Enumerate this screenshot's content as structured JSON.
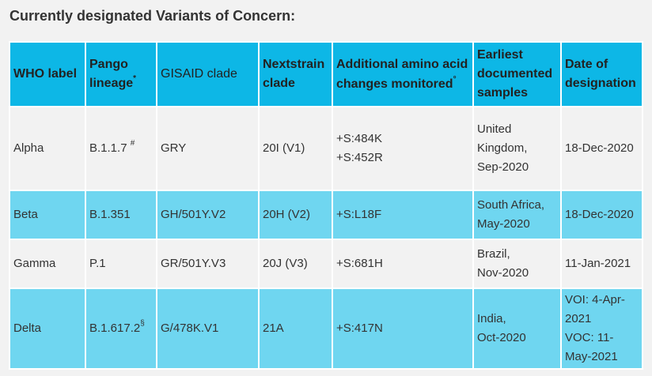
{
  "heading": "Currently designated Variants of Concern:",
  "columns": {
    "who_label": "WHO label",
    "pango_lineage": "Pango lineage",
    "pango_mark": "*",
    "gisaid_clade": "GISAID clade",
    "nextstrain_clade": "Nextstrain clade",
    "amino_acid_line1": "Additional amino acid",
    "amino_acid_line2": "changes monitored",
    "amino_acid_mark": "°",
    "earliest_samples": "Earliest documented samples",
    "date_designation": "Date of designation"
  },
  "rows": [
    {
      "who_label": "Alpha",
      "pango": "B.1.1.7",
      "pango_mark": "#",
      "gisaid": "GRY",
      "nextstrain": "20I (V1)",
      "changes": [
        "+S:484K",
        "+S:452R"
      ],
      "samples": [
        "United",
        "Kingdom,",
        "Sep-2020"
      ],
      "date": [
        "18-Dec-2020"
      ]
    },
    {
      "who_label": "Beta",
      "pango": "B.1.351",
      "pango_mark": "",
      "gisaid": "GH/501Y.V2",
      "nextstrain": "20H (V2)",
      "changes": [
        "+S:L18F"
      ],
      "samples": [
        "South Africa,",
        "May-2020"
      ],
      "date": [
        "18-Dec-2020"
      ]
    },
    {
      "who_label": "Gamma",
      "pango": "P.1",
      "pango_mark": "",
      "gisaid": "GR/501Y.V3",
      "nextstrain": "20J (V3)",
      "changes": [
        "+S:681H"
      ],
      "samples": [
        "Brazil,",
        "Nov-2020"
      ],
      "date": [
        "11-Jan-2021"
      ]
    },
    {
      "who_label": "Delta",
      "pango": "B.1.617.2",
      "pango_mark": "§",
      "gisaid": "G/478K.V1",
      "nextstrain": "21A",
      "changes": [
        "+S:417N"
      ],
      "samples": [
        "India,",
        "Oct-2020"
      ],
      "date": [
        "VOI: 4-Apr-",
        "2021",
        "VOC: 11-",
        "May-2021"
      ]
    }
  ]
}
